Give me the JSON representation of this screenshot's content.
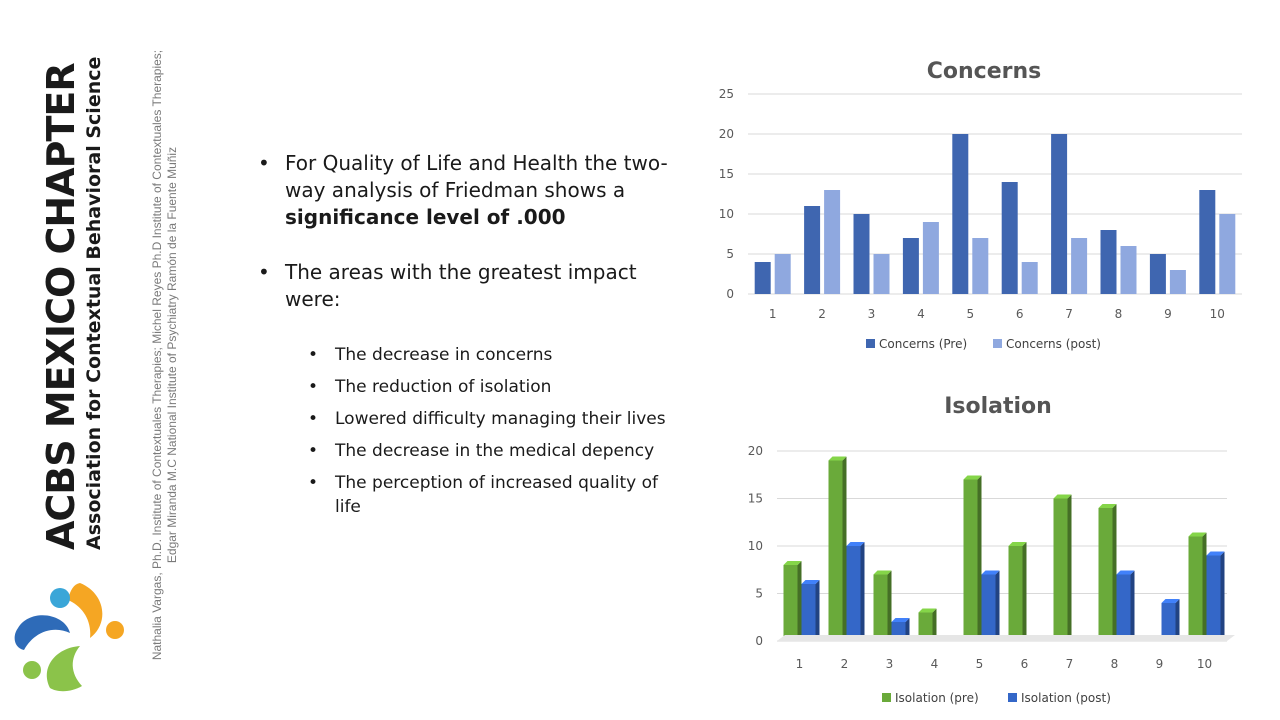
{
  "brand": {
    "title": "ACBS MEXICO CHAPTER",
    "subtitle": "Association for Contextual Behavioral Science",
    "logo_icon": "acbs-logo-icon",
    "colors": {
      "blue": "#2e6bb8",
      "orange": "#f5a623",
      "green": "#8bc34a",
      "teal": "#3aa6d8"
    }
  },
  "authors": "Nathalia Vargas, Ph.D. Institute of Contextuales Therapies; Michel Reyes Ph.D Institute of Contextuales Therapies; Edgar Miranda M.C National Institute of Psychiatry Ramón de la Fuente Muñiz",
  "main": {
    "bullets": [
      {
        "pre": "For Quality of Life and Health the two-way analysis of Friedman shows a ",
        "bold": "significance level of .000"
      },
      {
        "pre": "The areas with the greatest impact were:"
      }
    ],
    "sub_bullets": [
      "The decrease in concerns",
      "The reduction of isolation",
      "Lowered difficulty managing their lives",
      "The decrease in the medical depency",
      "The perception of increased quality of life"
    ]
  },
  "chart_data": [
    {
      "type": "bar",
      "title": "Concerns",
      "categories": [
        "1",
        "2",
        "3",
        "4",
        "5",
        "6",
        "7",
        "8",
        "9",
        "10"
      ],
      "series": [
        {
          "name": "Concerns (Pre)",
          "values": [
            4,
            11,
            10,
            7,
            20,
            14,
            20,
            8,
            5,
            13
          ],
          "color": "#3f66b0"
        },
        {
          "name": "Concerns (post)",
          "values": [
            5,
            13,
            5,
            9,
            7,
            4,
            7,
            6,
            3,
            10
          ],
          "color": "#8fa8df"
        }
      ],
      "ylim": [
        0,
        25
      ],
      "yticks": [
        0,
        5,
        10,
        15,
        20,
        25
      ],
      "grid": true,
      "legend": "bottom"
    },
    {
      "type": "bar",
      "title": "Isolation",
      "categories": [
        "1",
        "2",
        "3",
        "4",
        "5",
        "6",
        "7",
        "8",
        "9",
        "10"
      ],
      "series": [
        {
          "name": "Isolation (pre)",
          "values": [
            8,
            19,
            7,
            3,
            17,
            10,
            15,
            14,
            0,
            11
          ],
          "color": "#6aaa3a"
        },
        {
          "name": "Isolation (post)",
          "values": [
            6,
            10,
            2,
            0,
            7,
            0,
            0,
            7,
            4,
            9
          ],
          "color": "#3467c8"
        }
      ],
      "ylim": [
        0,
        20
      ],
      "yticks": [
        0,
        5,
        10,
        15,
        20
      ],
      "grid": true,
      "legend": "bottom"
    }
  ]
}
